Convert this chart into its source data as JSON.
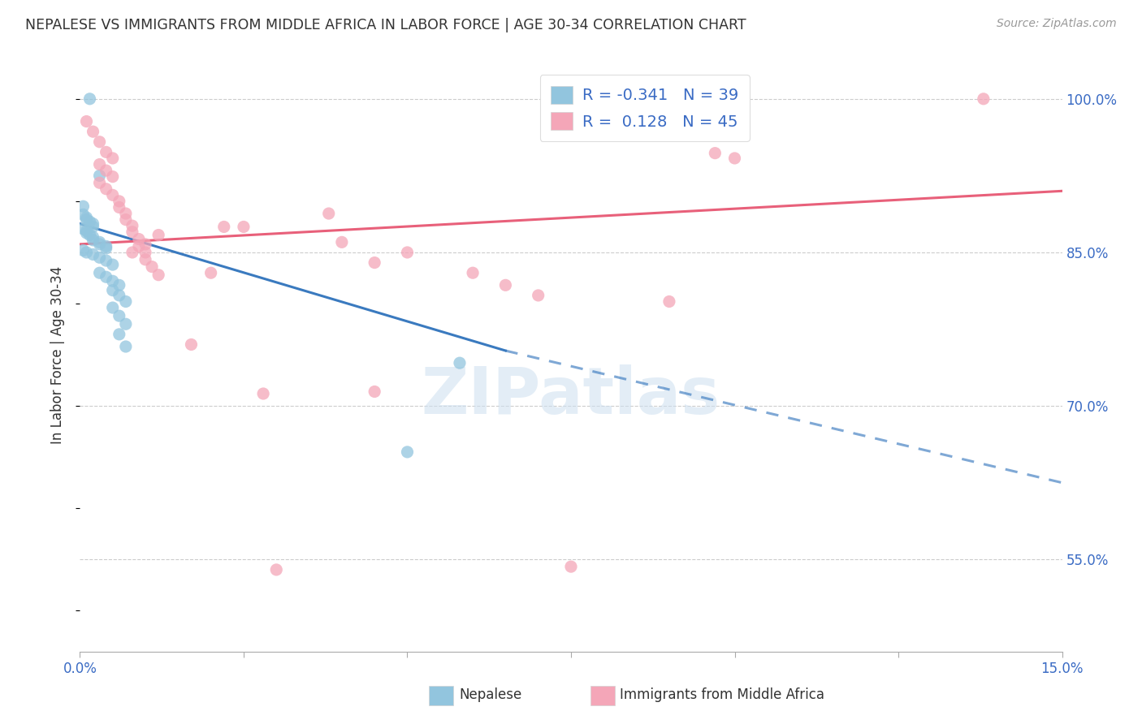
{
  "title": "NEPALESE VS IMMIGRANTS FROM MIDDLE AFRICA IN LABOR FORCE | AGE 30-34 CORRELATION CHART",
  "source": "Source: ZipAtlas.com",
  "ylabel": "In Labor Force | Age 30-34",
  "xmin": 0.0,
  "xmax": 0.15,
  "ymin": 0.46,
  "ymax": 1.04,
  "yticks": [
    0.55,
    0.7,
    0.85,
    1.0
  ],
  "ytick_labels": [
    "55.0%",
    "70.0%",
    "85.0%",
    "100.0%"
  ],
  "xticks": [
    0.0,
    0.025,
    0.05,
    0.075,
    0.1,
    0.125,
    0.15
  ],
  "xtick_labels": [
    "0.0%",
    "",
    "",
    "",
    "",
    "",
    "15.0%"
  ],
  "legend_r_blue": "-0.341",
  "legend_n_blue": "39",
  "legend_r_pink": "0.128",
  "legend_n_pink": "45",
  "watermark": "ZIPatlas",
  "blue_color": "#92c5de",
  "pink_color": "#f4a6b8",
  "blue_line_color": "#3a7abf",
  "pink_line_color": "#e8607a",
  "blue_scatter": [
    [
      0.0015,
      1.0
    ],
    [
      0.003,
      0.925
    ],
    [
      0.0005,
      0.895
    ],
    [
      0.0005,
      0.887
    ],
    [
      0.001,
      0.884
    ],
    [
      0.001,
      0.882
    ],
    [
      0.0015,
      0.88
    ],
    [
      0.002,
      0.878
    ],
    [
      0.002,
      0.875
    ],
    [
      0.0005,
      0.873
    ],
    [
      0.001,
      0.871
    ],
    [
      0.001,
      0.869
    ],
    [
      0.0015,
      0.867
    ],
    [
      0.002,
      0.865
    ],
    [
      0.002,
      0.862
    ],
    [
      0.003,
      0.86
    ],
    [
      0.003,
      0.858
    ],
    [
      0.004,
      0.856
    ],
    [
      0.004,
      0.854
    ],
    [
      0.0005,
      0.852
    ],
    [
      0.001,
      0.85
    ],
    [
      0.002,
      0.848
    ],
    [
      0.003,
      0.845
    ],
    [
      0.004,
      0.842
    ],
    [
      0.005,
      0.838
    ],
    [
      0.003,
      0.83
    ],
    [
      0.004,
      0.826
    ],
    [
      0.005,
      0.822
    ],
    [
      0.006,
      0.818
    ],
    [
      0.005,
      0.813
    ],
    [
      0.006,
      0.808
    ],
    [
      0.007,
      0.802
    ],
    [
      0.005,
      0.796
    ],
    [
      0.006,
      0.788
    ],
    [
      0.007,
      0.78
    ],
    [
      0.006,
      0.77
    ],
    [
      0.007,
      0.758
    ],
    [
      0.058,
      0.742
    ],
    [
      0.05,
      0.655
    ]
  ],
  "pink_scatter": [
    [
      0.138,
      1.0
    ],
    [
      0.001,
      0.978
    ],
    [
      0.002,
      0.968
    ],
    [
      0.003,
      0.958
    ],
    [
      0.004,
      0.948
    ],
    [
      0.005,
      0.942
    ],
    [
      0.003,
      0.936
    ],
    [
      0.004,
      0.93
    ],
    [
      0.005,
      0.924
    ],
    [
      0.003,
      0.918
    ],
    [
      0.004,
      0.912
    ],
    [
      0.005,
      0.906
    ],
    [
      0.006,
      0.9
    ],
    [
      0.006,
      0.894
    ],
    [
      0.007,
      0.888
    ],
    [
      0.007,
      0.882
    ],
    [
      0.008,
      0.876
    ],
    [
      0.008,
      0.87
    ],
    [
      0.009,
      0.863
    ],
    [
      0.009,
      0.856
    ],
    [
      0.01,
      0.85
    ],
    [
      0.01,
      0.843
    ],
    [
      0.011,
      0.836
    ],
    [
      0.012,
      0.828
    ],
    [
      0.038,
      0.888
    ],
    [
      0.025,
      0.875
    ],
    [
      0.04,
      0.86
    ],
    [
      0.05,
      0.85
    ],
    [
      0.045,
      0.84
    ],
    [
      0.06,
      0.83
    ],
    [
      0.065,
      0.818
    ],
    [
      0.07,
      0.808
    ],
    [
      0.09,
      0.802
    ],
    [
      0.097,
      0.947
    ],
    [
      0.1,
      0.942
    ],
    [
      0.028,
      0.712
    ],
    [
      0.045,
      0.714
    ],
    [
      0.03,
      0.54
    ],
    [
      0.075,
      0.543
    ],
    [
      0.017,
      0.76
    ],
    [
      0.02,
      0.83
    ],
    [
      0.022,
      0.875
    ],
    [
      0.012,
      0.867
    ],
    [
      0.01,
      0.858
    ],
    [
      0.008,
      0.85
    ]
  ],
  "blue_line_solid": {
    "x0": 0.0,
    "x1": 0.065,
    "y0": 0.878,
    "y1": 0.754
  },
  "blue_line_dash": {
    "x0": 0.065,
    "x1": 0.15,
    "y0": 0.754,
    "y1": 0.625
  },
  "pink_line": {
    "x0": 0.0,
    "x1": 0.15,
    "y0": 0.858,
    "y1": 0.91
  }
}
